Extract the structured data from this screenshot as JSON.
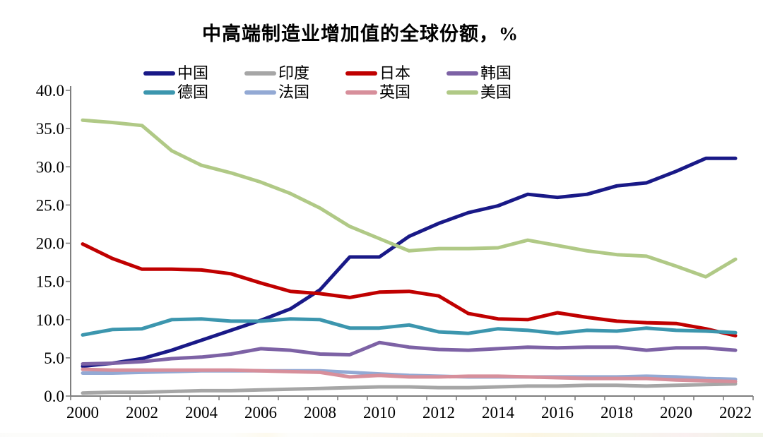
{
  "title": "中高端制造业增加值的全球份额，%",
  "chart_data": {
    "type": "line",
    "title": "中高端制造业增加值的全球份额，%",
    "x": [
      2000,
      2001,
      2002,
      2003,
      2004,
      2005,
      2006,
      2007,
      2008,
      2009,
      2010,
      2011,
      2012,
      2013,
      2014,
      2015,
      2016,
      2017,
      2018,
      2019,
      2020,
      2021,
      2022
    ],
    "x_tick_labels": [
      "2000",
      "2002",
      "2004",
      "2006",
      "2008",
      "2010",
      "2012",
      "2014",
      "2016",
      "2018",
      "2020",
      "2022"
    ],
    "ylim": [
      0,
      40
    ],
    "y_tick_step": 5,
    "y_tick_labels": [
      "0.0",
      "5.0",
      "10.0",
      "15.0",
      "20.0",
      "25.0",
      "30.0",
      "35.0",
      "40.0"
    ],
    "grid": false,
    "legend_position": "top",
    "axis_color": "#7f7f7f",
    "text_color": "#000000",
    "series": [
      {
        "name": "中国",
        "color": "#191987",
        "values": [
          3.9,
          4.3,
          4.9,
          6.0,
          7.3,
          8.6,
          9.9,
          11.4,
          13.9,
          18.2,
          18.2,
          20.9,
          22.6,
          24.0,
          24.9,
          26.4,
          26.0,
          26.4,
          27.5,
          27.9,
          29.4,
          31.1,
          31.1
        ]
      },
      {
        "name": "印度",
        "color": "#a6a6a6",
        "values": [
          0.4,
          0.5,
          0.5,
          0.6,
          0.7,
          0.7,
          0.8,
          0.9,
          1.0,
          1.1,
          1.2,
          1.2,
          1.1,
          1.1,
          1.2,
          1.3,
          1.3,
          1.4,
          1.4,
          1.3,
          1.4,
          1.5,
          1.6
        ]
      },
      {
        "name": "日本",
        "color": "#c00000",
        "values": [
          19.9,
          18.0,
          16.6,
          16.6,
          16.5,
          16.0,
          14.8,
          13.7,
          13.4,
          12.9,
          13.6,
          13.7,
          13.1,
          10.8,
          10.1,
          10.0,
          10.9,
          10.3,
          9.8,
          9.6,
          9.5,
          8.8,
          7.9
        ]
      },
      {
        "name": "韩国",
        "color": "#7d62a5",
        "values": [
          4.2,
          4.3,
          4.5,
          4.9,
          5.1,
          5.5,
          6.2,
          6.0,
          5.5,
          5.4,
          7.0,
          6.4,
          6.1,
          6.0,
          6.2,
          6.4,
          6.3,
          6.4,
          6.4,
          6.0,
          6.3,
          6.3,
          6.0
        ]
      },
      {
        "name": "德国",
        "color": "#3c96ae",
        "values": [
          8.0,
          8.7,
          8.8,
          10.0,
          10.1,
          9.8,
          9.8,
          10.1,
          10.0,
          8.9,
          8.9,
          9.3,
          8.4,
          8.2,
          8.8,
          8.6,
          8.2,
          8.6,
          8.5,
          8.9,
          8.6,
          8.5,
          8.3
        ]
      },
      {
        "name": "法国",
        "color": "#93a9d4",
        "values": [
          3.0,
          3.0,
          3.1,
          3.2,
          3.3,
          3.3,
          3.3,
          3.3,
          3.3,
          3.1,
          2.9,
          2.7,
          2.6,
          2.5,
          2.5,
          2.5,
          2.5,
          2.5,
          2.5,
          2.6,
          2.5,
          2.3,
          2.2
        ]
      },
      {
        "name": "英国",
        "color": "#d78f9b",
        "values": [
          3.5,
          3.4,
          3.4,
          3.4,
          3.4,
          3.4,
          3.3,
          3.2,
          3.1,
          2.5,
          2.7,
          2.5,
          2.5,
          2.6,
          2.6,
          2.5,
          2.4,
          2.3,
          2.3,
          2.3,
          2.1,
          2.0,
          1.9
        ]
      },
      {
        "name": "美国",
        "color": "#b0c986",
        "values": [
          36.1,
          35.8,
          35.4,
          32.1,
          30.2,
          29.2,
          28.0,
          26.5,
          24.6,
          22.2,
          20.6,
          19.0,
          19.3,
          19.3,
          19.4,
          20.4,
          19.7,
          19.0,
          18.5,
          18.3,
          17.0,
          15.6,
          17.9
        ]
      }
    ],
    "layout": {
      "plot_left": 100,
      "plot_right": 1066,
      "plot_top": 122,
      "plot_bottom": 561,
      "first_point_x": 117,
      "point_spacing": 42,
      "line_width": 5
    }
  }
}
